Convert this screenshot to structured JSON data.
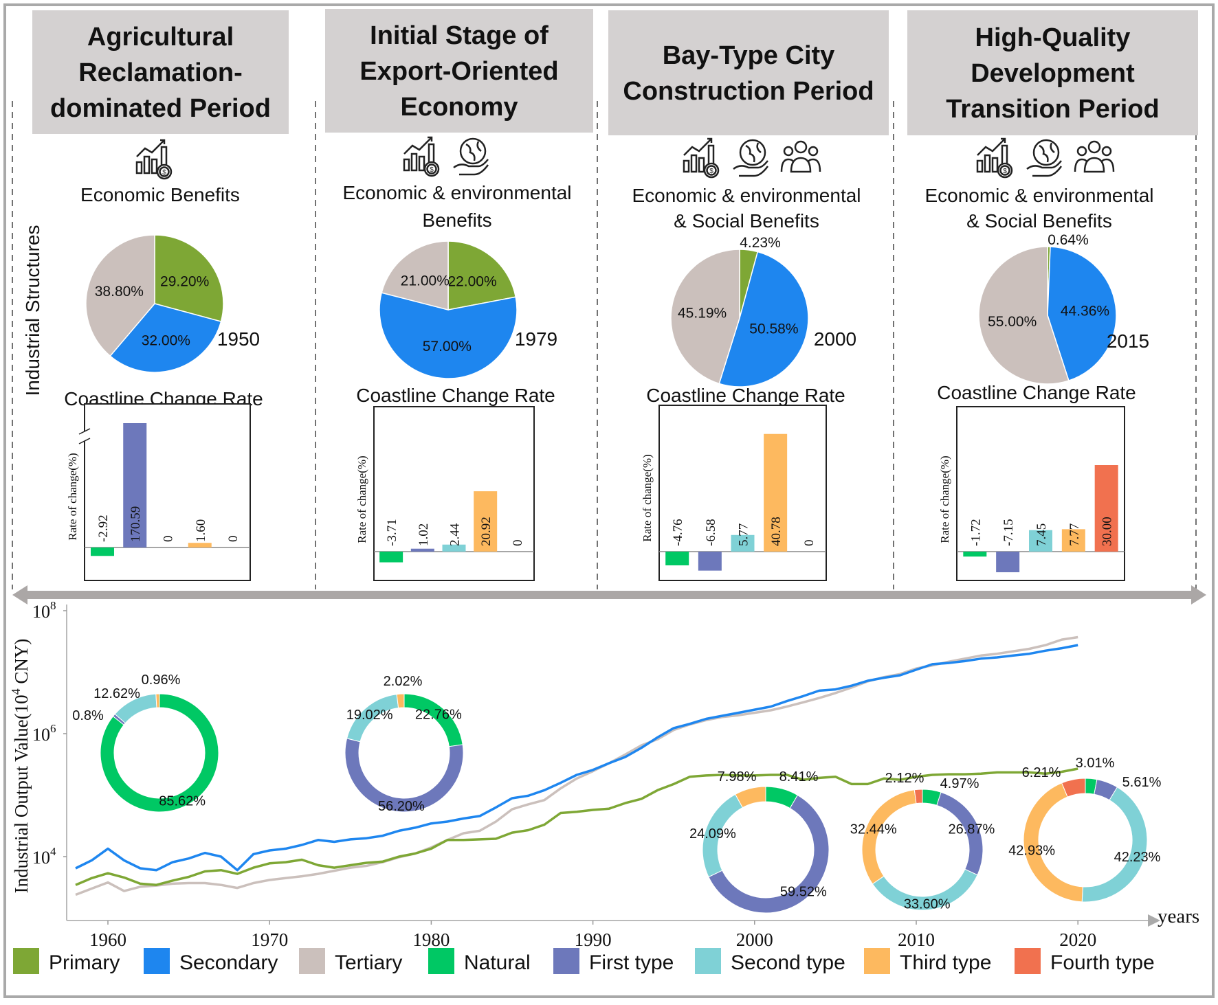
{
  "side_label": "Industrial Structures",
  "coast_title": "Coastline Change Rate",
  "bar_axis_label": "Rate of change(%)",
  "colors": {
    "primary": "#7ea735",
    "secondary": "#1e86ef",
    "tertiary": "#cbc0bc",
    "natural": "#00c864",
    "first": "#6d78bb",
    "second": "#7fd1d6",
    "third": "#fdb95f",
    "fourth": "#f1714f",
    "header_bg": "#d4d1d1",
    "arrow": "#aba7a6"
  },
  "panels": [
    {
      "title": [
        "Agricultural",
        "Reclamation-",
        "dominated Period"
      ],
      "icons": [
        "economic-growth-icon"
      ],
      "benefits": [
        "Economic Benefits"
      ],
      "pie": {
        "year": "1950",
        "values": [
          29.2,
          32.0,
          38.8
        ],
        "labels": [
          "29.20%",
          "32.00%",
          "38.80%"
        ]
      },
      "bars": {
        "values": [
          -2.92,
          170.59,
          0,
          1.6,
          0
        ],
        "labels": [
          "-2.92",
          "170.59",
          "0",
          "1.60",
          "0"
        ],
        "axis_break": true
      }
    },
    {
      "title": [
        "Initial  Stage of",
        "Export-Oriented",
        "Economy"
      ],
      "icons": [
        "economic-growth-icon",
        "globe-in-hand-icon"
      ],
      "benefits": [
        "Economic & environmental",
        "Benefits"
      ],
      "pie": {
        "year": "1979",
        "values": [
          22.0,
          57.0,
          21.0
        ],
        "labels": [
          "22.00%",
          "57.00%",
          "21.00%"
        ]
      },
      "bars": {
        "values": [
          -3.71,
          1.02,
          2.44,
          20.92,
          0
        ],
        "labels": [
          "-3.71",
          "1.02",
          "2.44",
          "20.92",
          "0"
        ],
        "axis_break": false
      }
    },
    {
      "title": [
        "Bay-Type City",
        "Construction Period"
      ],
      "icons": [
        "economic-growth-icon",
        "globe-in-hand-icon",
        "people-group-icon"
      ],
      "benefits": [
        "Economic & environmental",
        "& Social Benefits"
      ],
      "pie": {
        "year": "2000",
        "values": [
          4.23,
          50.58,
          45.19
        ],
        "labels": [
          "4.23%",
          "50.58%",
          "45.19%"
        ]
      },
      "bars": {
        "values": [
          -4.76,
          -6.58,
          5.77,
          40.78,
          0
        ],
        "labels": [
          "-4.76",
          "-6.58",
          "5.77",
          "40.78",
          "0"
        ],
        "axis_break": false
      }
    },
    {
      "title": [
        "High-Quality",
        "Development",
        "Transition Period"
      ],
      "icons": [
        "economic-growth-icon",
        "globe-in-hand-icon",
        "people-group-icon"
      ],
      "benefits": [
        "Economic & environmental",
        "& Social Benefits"
      ],
      "pie": {
        "year": "2015",
        "values": [
          0.64,
          44.36,
          55.0
        ],
        "labels": [
          "0.64%",
          "44.36%",
          "55.00%"
        ]
      },
      "bars": {
        "values": [
          -1.72,
          -7.15,
          7.45,
          7.77,
          30.0
        ],
        "labels": [
          "-1.72",
          "-7.15",
          "7.45",
          "7.77",
          "30.00"
        ],
        "axis_break": false
      }
    }
  ],
  "chart_data": {
    "type": "line",
    "ylabel_main": "Industrial Output Value(10",
    "ylabel_sup": "4",
    "ylabel_end": " CNY)",
    "xlabel": "years",
    "yscale": "log10",
    "ylim_log10": [
      3,
      8
    ],
    "yticks": [
      {
        "base": "10",
        "exp": "8",
        "log10": 8
      },
      {
        "base": "10",
        "exp": "6",
        "log10": 6
      },
      {
        "base": "10",
        "exp": "4",
        "log10": 4
      }
    ],
    "xticks": [
      "1960",
      "1970",
      "1980",
      "1990",
      "2000",
      "2010",
      "2020"
    ],
    "x_start": 1958,
    "series": [
      {
        "name": "Primary",
        "color_key": "primary",
        "log10_values": [
          3.54,
          3.65,
          3.73,
          3.66,
          3.56,
          3.54,
          3.61,
          3.67,
          3.76,
          3.78,
          3.72,
          3.82,
          3.89,
          3.91,
          3.95,
          3.86,
          3.82,
          3.86,
          3.9,
          3.92,
          4.0,
          4.05,
          4.13,
          4.27,
          4.27,
          4.28,
          4.29,
          4.39,
          4.43,
          4.52,
          4.71,
          4.73,
          4.76,
          4.78,
          4.87,
          4.94,
          5.08,
          5.18,
          5.3,
          5.32,
          5.33,
          5.32,
          5.32,
          5.33,
          5.33,
          5.25,
          5.28,
          5.3,
          5.18,
          5.18,
          5.27,
          5.25,
          5.3,
          5.33,
          5.34,
          5.34,
          5.35,
          5.37,
          5.37,
          5.37,
          5.35,
          5.38,
          5.43
        ]
      },
      {
        "name": "Secondary",
        "color_key": "secondary",
        "log10_values": [
          3.81,
          3.94,
          4.13,
          3.94,
          3.81,
          3.78,
          3.91,
          3.97,
          4.06,
          4.0,
          3.78,
          4.04,
          4.1,
          4.13,
          4.19,
          4.27,
          4.24,
          4.28,
          4.3,
          4.34,
          4.42,
          4.47,
          4.54,
          4.57,
          4.62,
          4.66,
          4.8,
          4.95,
          4.99,
          5.08,
          5.2,
          5.33,
          5.41,
          5.52,
          5.62,
          5.77,
          5.94,
          6.09,
          6.16,
          6.24,
          6.29,
          6.34,
          6.39,
          6.44,
          6.53,
          6.61,
          6.7,
          6.72,
          6.78,
          6.86,
          6.91,
          6.95,
          7.04,
          7.13,
          7.15,
          7.18,
          7.22,
          7.24,
          7.27,
          7.3,
          7.35,
          7.39,
          7.44
        ]
      },
      {
        "name": "Tertiary",
        "color_key": "tertiary",
        "log10_values": [
          3.38,
          3.48,
          3.58,
          3.44,
          3.51,
          3.53,
          3.56,
          3.57,
          3.57,
          3.54,
          3.49,
          3.57,
          3.62,
          3.65,
          3.68,
          3.72,
          3.77,
          3.82,
          3.85,
          3.91,
          3.99,
          4.05,
          4.15,
          4.27,
          4.38,
          4.42,
          4.57,
          4.77,
          4.85,
          4.92,
          5.11,
          5.27,
          5.39,
          5.52,
          5.66,
          5.81,
          5.91,
          6.06,
          6.15,
          6.22,
          6.27,
          6.3,
          6.34,
          6.38,
          6.44,
          6.51,
          6.58,
          6.66,
          6.75,
          6.85,
          6.92,
          6.97,
          7.06,
          7.11,
          7.17,
          7.22,
          7.27,
          7.3,
          7.34,
          7.38,
          7.44,
          7.53,
          7.57
        ]
      }
    ],
    "donuts": [
      {
        "values": [
          85.62,
          0.8,
          12.62,
          0.96,
          0
        ],
        "labels": [
          "85.62%",
          "0.8%",
          "12.62%",
          "0.96%",
          ""
        ]
      },
      {
        "values": [
          22.76,
          56.2,
          19.02,
          2.02,
          0
        ],
        "labels": [
          "22.76%",
          "56.20%",
          "19.02%",
          "2.02%",
          ""
        ]
      },
      {
        "values": [
          8.41,
          59.52,
          24.09,
          7.98,
          0
        ],
        "labels": [
          "8.41%",
          "59.52%",
          "24.09%",
          "7.98%",
          ""
        ]
      },
      {
        "values": [
          4.97,
          26.87,
          33.6,
          32.44,
          2.12
        ],
        "labels": [
          "4.97%",
          "26.87%",
          "33.60%",
          "32.44%",
          "2.12%"
        ]
      },
      {
        "values": [
          3.01,
          5.61,
          42.23,
          42.93,
          6.21
        ],
        "labels": [
          "3.01%",
          "5.61%",
          "42.23%",
          "42.93%",
          "6.21%"
        ]
      }
    ],
    "legend": [
      {
        "label": "Primary",
        "color_key": "primary"
      },
      {
        "label": "Secondary",
        "color_key": "secondary"
      },
      {
        "label": "Tertiary",
        "color_key": "tertiary"
      },
      {
        "label": "Natural",
        "color_key": "natural"
      },
      {
        "label": "First type",
        "color_key": "first"
      },
      {
        "label": "Second type",
        "color_key": "second"
      },
      {
        "label": "Third type",
        "color_key": "third"
      },
      {
        "label": "Fourth type",
        "color_key": "fourth"
      }
    ]
  }
}
